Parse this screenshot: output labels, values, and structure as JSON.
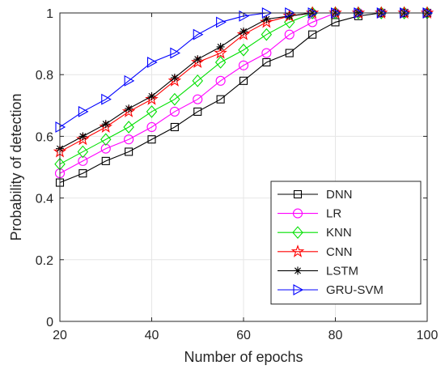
{
  "chart_data": {
    "type": "line",
    "xlabel": "Number of epochs",
    "ylabel": "Probability of detection",
    "xlim": [
      20,
      100
    ],
    "ylim": [
      0,
      1
    ],
    "xticks": [
      "20",
      "40",
      "60",
      "80",
      "100"
    ],
    "yticks": [
      "0",
      "0.2",
      "0.4",
      "0.6",
      "0.8",
      "1"
    ],
    "grid": true,
    "legend_position": "bottom-right",
    "x": [
      20,
      25,
      30,
      35,
      40,
      45,
      50,
      55,
      60,
      65,
      70,
      75,
      80,
      85,
      90,
      95,
      100
    ],
    "series": [
      {
        "name": "DNN",
        "color": "#000000",
        "marker": "square",
        "values": [
          0.45,
          0.48,
          0.52,
          0.55,
          0.59,
          0.63,
          0.68,
          0.72,
          0.78,
          0.84,
          0.87,
          0.93,
          0.97,
          0.99,
          1.0,
          1.0,
          1.0
        ]
      },
      {
        "name": "LR",
        "color": "#ff00ff",
        "marker": "circle",
        "values": [
          0.48,
          0.52,
          0.56,
          0.59,
          0.63,
          0.68,
          0.72,
          0.78,
          0.83,
          0.87,
          0.93,
          0.97,
          1.0,
          1.0,
          1.0,
          1.0,
          1.0
        ]
      },
      {
        "name": "KNN",
        "color": "#00e000",
        "marker": "diamond",
        "values": [
          0.51,
          0.55,
          0.59,
          0.63,
          0.68,
          0.72,
          0.78,
          0.84,
          0.88,
          0.93,
          0.97,
          1.0,
          1.0,
          1.0,
          1.0,
          1.0,
          1.0
        ]
      },
      {
        "name": "CNN",
        "color": "#ff0000",
        "marker": "pentagram",
        "values": [
          0.55,
          0.59,
          0.63,
          0.68,
          0.72,
          0.78,
          0.84,
          0.87,
          0.93,
          0.97,
          0.99,
          1.0,
          1.0,
          1.0,
          1.0,
          1.0,
          1.0
        ]
      },
      {
        "name": "LSTM",
        "color": "#000000",
        "marker": "asterisk",
        "values": [
          0.56,
          0.6,
          0.64,
          0.69,
          0.73,
          0.79,
          0.85,
          0.89,
          0.94,
          0.98,
          0.99,
          1.0,
          1.0,
          1.0,
          1.0,
          1.0,
          1.0
        ]
      },
      {
        "name": "GRU-SVM",
        "color": "#0000ff",
        "marker": "triangle-right",
        "values": [
          0.63,
          0.68,
          0.72,
          0.78,
          0.84,
          0.87,
          0.93,
          0.97,
          0.99,
          1.0,
          1.0,
          1.0,
          1.0,
          1.0,
          1.0,
          1.0,
          1.0
        ]
      }
    ]
  }
}
